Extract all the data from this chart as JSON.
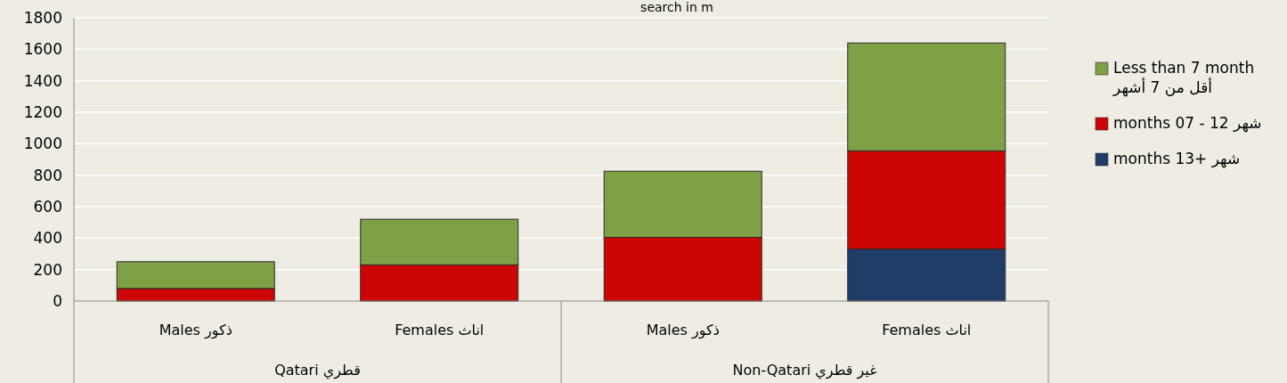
{
  "chart_data": {
    "type": "bar",
    "stacked": true,
    "title": "search in m",
    "categories": [
      "Males ذكور",
      "Females اناث",
      "Males ذكور",
      "Females اناث"
    ],
    "annotations": [
      "Qatari قطري",
      "Non-Qatari غير قطري"
    ],
    "series": [
      {
        "name": "months 13+ شهر",
        "color": "#1f3d66",
        "values": [
          0,
          0,
          0,
          330
        ]
      },
      {
        "name": "months 07 - 12 شهر",
        "color": "#cc0606",
        "values": [
          80,
          230,
          405,
          625
        ]
      },
      {
        "name": "Less than 7 month\nأقل من 7 أشهر",
        "color": "#80a046",
        "values": [
          170,
          290,
          420,
          685
        ]
      }
    ],
    "ylim": [
      0,
      1800
    ],
    "yticks": [
      0,
      200,
      400,
      600,
      800,
      1000,
      1200,
      1400,
      1600,
      1800
    ],
    "grid": "y",
    "legend": "right"
  }
}
